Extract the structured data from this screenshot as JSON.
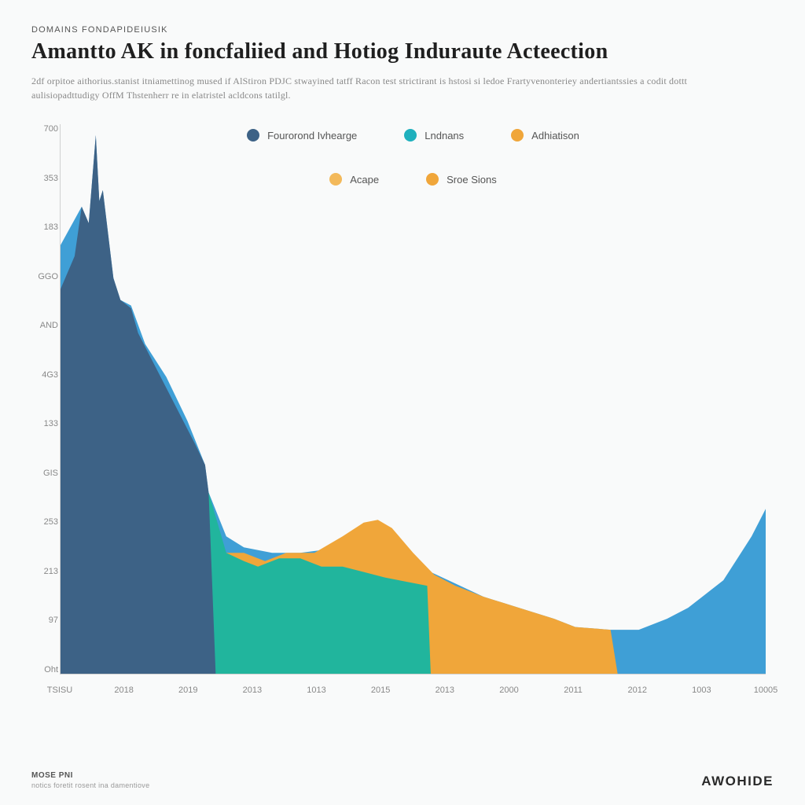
{
  "eyebrow": "DOMAINS FONDAPIDEIUSIK",
  "title": "Amantto AK in foncfaliied and Hotiog Induraute Acteection",
  "subtitle": "2df orpitoe aithorius.stanist itniamettinog mused if AlStiron PDJC stwayined tatff Racon test strictirant is hstosi si ledoe Frartyvenonteriey andertiantssies a codit dottt aulisiopadttudigy OffM Thstenherr re in elatristel acldcons tatilgl.",
  "chart": {
    "type": "area",
    "background_color": "#f9fafa",
    "grid_color": "#eceded",
    "axis_color": "#d0d0d0",
    "y_ticks": [
      "700",
      "353",
      "183",
      "GGO",
      "AND",
      "4G3",
      "133",
      "GIS",
      "253",
      "213",
      "97",
      "Oht"
    ],
    "x_ticks": [
      "TSISU",
      "2018",
      "2019",
      "2013",
      "1013",
      "2015",
      "2013",
      "2000",
      "2011",
      "2012",
      "1003",
      "10005"
    ],
    "legend": [
      {
        "label": "Fourorond Ivhearge",
        "color": "#3d6286"
      },
      {
        "label": "Lndnans",
        "color": "#1fb0bd"
      },
      {
        "label": "Adhiatison",
        "color": "#f0a63a"
      },
      {
        "label": "Acape",
        "color": "#f3b95a"
      },
      {
        "label": "Sroe Sions",
        "color": "#f0a63a"
      }
    ],
    "series": [
      {
        "name": "blue-back",
        "color": "#3f9fd6",
        "points": [
          [
            0,
            0.78
          ],
          [
            0.03,
            0.85
          ],
          [
            0.04,
            0.82
          ],
          [
            0.05,
            0.98
          ],
          [
            0.055,
            0.86
          ],
          [
            0.06,
            0.88
          ],
          [
            0.075,
            0.72
          ],
          [
            0.085,
            0.68
          ],
          [
            0.1,
            0.67
          ],
          [
            0.12,
            0.6
          ],
          [
            0.15,
            0.54
          ],
          [
            0.18,
            0.46
          ],
          [
            0.205,
            0.38
          ],
          [
            0.21,
            0.33
          ],
          [
            0.235,
            0.25
          ],
          [
            0.26,
            0.23
          ],
          [
            0.3,
            0.22
          ],
          [
            0.34,
            0.22
          ],
          [
            0.4,
            0.23
          ],
          [
            0.45,
            0.23
          ],
          [
            0.5,
            0.2
          ],
          [
            0.55,
            0.17
          ],
          [
            0.6,
            0.14
          ],
          [
            0.65,
            0.12
          ],
          [
            0.7,
            0.1
          ],
          [
            0.73,
            0.085
          ],
          [
            0.78,
            0.08
          ],
          [
            0.82,
            0.08
          ],
          [
            0.86,
            0.1
          ],
          [
            0.89,
            0.12
          ],
          [
            0.92,
            0.15
          ],
          [
            0.94,
            0.17
          ],
          [
            0.96,
            0.21
          ],
          [
            0.98,
            0.25
          ],
          [
            1.0,
            0.3
          ]
        ]
      },
      {
        "name": "orange-mid",
        "color": "#f0a63a",
        "points": [
          [
            0.205,
            0.0
          ],
          [
            0.21,
            0.19
          ],
          [
            0.235,
            0.22
          ],
          [
            0.26,
            0.22
          ],
          [
            0.29,
            0.205
          ],
          [
            0.32,
            0.22
          ],
          [
            0.36,
            0.22
          ],
          [
            0.4,
            0.25
          ],
          [
            0.43,
            0.275
          ],
          [
            0.45,
            0.28
          ],
          [
            0.47,
            0.265
          ],
          [
            0.5,
            0.22
          ],
          [
            0.53,
            0.18
          ],
          [
            0.56,
            0.16
          ],
          [
            0.6,
            0.14
          ],
          [
            0.65,
            0.12
          ],
          [
            0.7,
            0.1
          ],
          [
            0.73,
            0.085
          ],
          [
            0.78,
            0.08
          ],
          [
            0.79,
            0.0
          ]
        ]
      },
      {
        "name": "teal-mid",
        "color": "#21b59d",
        "points": [
          [
            0.205,
            0.0
          ],
          [
            0.21,
            0.33
          ],
          [
            0.235,
            0.22
          ],
          [
            0.26,
            0.205
          ],
          [
            0.28,
            0.195
          ],
          [
            0.31,
            0.21
          ],
          [
            0.34,
            0.21
          ],
          [
            0.37,
            0.195
          ],
          [
            0.4,
            0.195
          ],
          [
            0.43,
            0.185
          ],
          [
            0.46,
            0.175
          ],
          [
            0.48,
            0.17
          ],
          [
            0.52,
            0.16
          ],
          [
            0.525,
            0.0
          ]
        ]
      },
      {
        "name": "darkblue-front",
        "color": "#3d6286",
        "points": [
          [
            0,
            0.0
          ],
          [
            0,
            0.7
          ],
          [
            0.02,
            0.76
          ],
          [
            0.03,
            0.85
          ],
          [
            0.04,
            0.82
          ],
          [
            0.05,
            0.98
          ],
          [
            0.055,
            0.86
          ],
          [
            0.06,
            0.88
          ],
          [
            0.075,
            0.72
          ],
          [
            0.085,
            0.68
          ],
          [
            0.1,
            0.665
          ],
          [
            0.11,
            0.62
          ],
          [
            0.13,
            0.57
          ],
          [
            0.15,
            0.52
          ],
          [
            0.17,
            0.47
          ],
          [
            0.19,
            0.42
          ],
          [
            0.205,
            0.38
          ],
          [
            0.21,
            0.33
          ],
          [
            0.22,
            0.0
          ]
        ]
      }
    ]
  },
  "footer": {
    "note_label": "MOSE PNI",
    "note_text": "notics foretit rosent ina damentiove",
    "brand": "AWOHIDE"
  }
}
